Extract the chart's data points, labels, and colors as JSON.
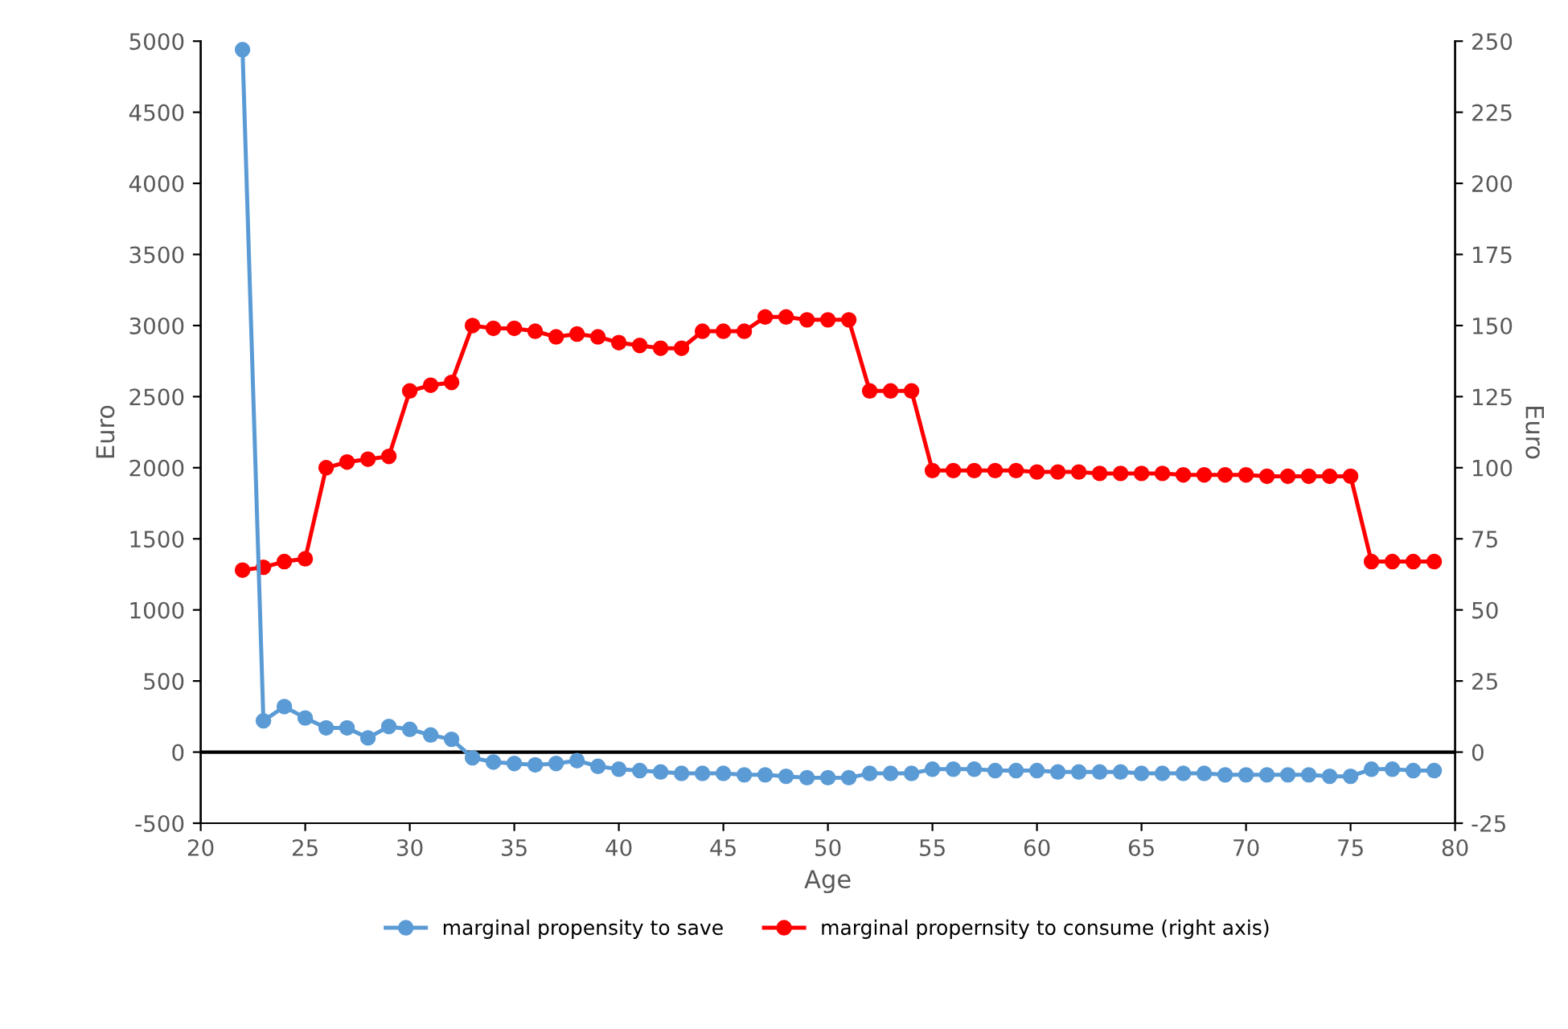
{
  "chart_data": {
    "type": "line",
    "xlabel": "Age",
    "ylabel": "Euro",
    "y2label": "Euro",
    "x": [
      22,
      23,
      24,
      25,
      26,
      27,
      28,
      29,
      30,
      31,
      32,
      33,
      34,
      35,
      36,
      37,
      38,
      39,
      40,
      41,
      42,
      43,
      44,
      45,
      46,
      47,
      48,
      49,
      50,
      51,
      52,
      53,
      54,
      55,
      56,
      57,
      58,
      59,
      60,
      61,
      62,
      63,
      64,
      65,
      66,
      67,
      68,
      69,
      70,
      71,
      72,
      73,
      74,
      75,
      76,
      77,
      78,
      79
    ],
    "series": [
      {
        "name": "marginal propensity to save",
        "color": "#5b9bd5",
        "values": [
          4940,
          220,
          320,
          240,
          170,
          170,
          100,
          180,
          160,
          120,
          90,
          -40,
          -70,
          -80,
          -90,
          -80,
          -60,
          -100,
          -120,
          -130,
          -140,
          -150,
          -150,
          -150,
          -160,
          -160,
          -170,
          -180,
          -180,
          -180,
          -150,
          -150,
          -150,
          -120,
          -120,
          -120,
          -130,
          -130,
          -130,
          -140,
          -140,
          -140,
          -140,
          -150,
          -150,
          -150,
          -150,
          -160,
          -160,
          -160,
          -160,
          -160,
          -170,
          -170,
          -120,
          -120,
          -130,
          -130
        ]
      },
      {
        "name": "marginal propernsity to consume (right axis)",
        "color": "#ff0000",
        "axis": "y2",
        "values": [
          64,
          65,
          67,
          68,
          100,
          102,
          103,
          104,
          127,
          129,
          130,
          150,
          149,
          149,
          148,
          146,
          147,
          146,
          144,
          143,
          142,
          142,
          148,
          148,
          148,
          153,
          153,
          152,
          152,
          152,
          127,
          127,
          127,
          99,
          99,
          99,
          99,
          99,
          98.5,
          98.5,
          98.5,
          98,
          98,
          98,
          98,
          97.5,
          97.5,
          97.5,
          97.5,
          97,
          97,
          97,
          97,
          97,
          67,
          67,
          67,
          67
        ]
      }
    ],
    "xlim": [
      20,
      80
    ],
    "xticks": [
      20,
      25,
      30,
      35,
      40,
      45,
      50,
      55,
      60,
      65,
      70,
      75,
      80
    ],
    "ylim": [
      -500,
      5000
    ],
    "yticks": [
      -500,
      0,
      500,
      1000,
      1500,
      2000,
      2500,
      3000,
      3500,
      4000,
      4500,
      5000
    ],
    "y2lim": [
      -25,
      250
    ],
    "y2ticks": [
      -25,
      0,
      25,
      50,
      75,
      100,
      125,
      150,
      175,
      200,
      225,
      250
    ],
    "ref_lines": [
      {
        "axis": "y",
        "value": 0,
        "color": "#000000"
      }
    ],
    "marker": "circle",
    "line_style": "solid",
    "grid": false,
    "legend": "bottom"
  }
}
